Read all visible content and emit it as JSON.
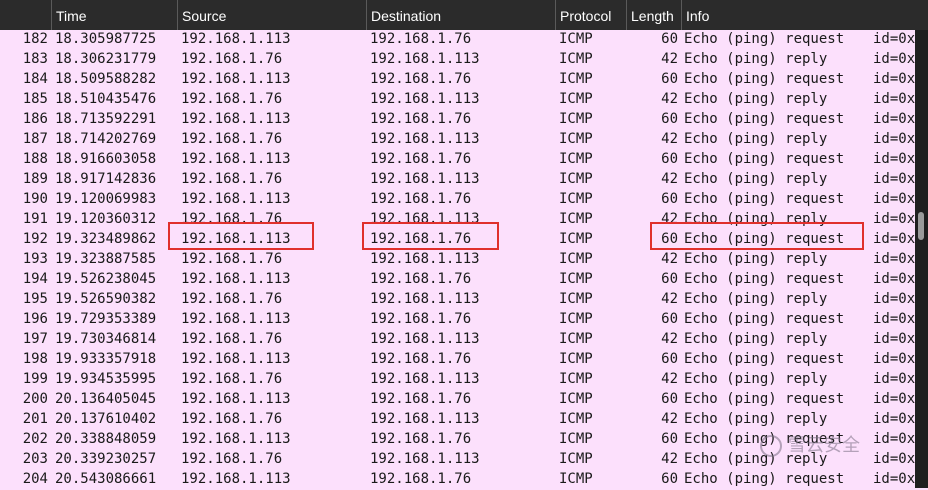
{
  "columns": {
    "no": "",
    "time": "Time",
    "source": "Source",
    "destination": "Destination",
    "protocol": "Protocol",
    "length": "Length",
    "info": "Info"
  },
  "packets": [
    {
      "no": "182",
      "time": "18.305987725",
      "src": "192.168.1.113",
      "dst": "192.168.1.76",
      "proto": "ICMP",
      "len": "60",
      "info": "Echo (ping) request",
      "extra": "id=0x"
    },
    {
      "no": "183",
      "time": "18.306231779",
      "src": "192.168.1.76",
      "dst": "192.168.1.113",
      "proto": "ICMP",
      "len": "42",
      "info": "Echo (ping) reply",
      "extra": "id=0x"
    },
    {
      "no": "184",
      "time": "18.509588282",
      "src": "192.168.1.113",
      "dst": "192.168.1.76",
      "proto": "ICMP",
      "len": "60",
      "info": "Echo (ping) request",
      "extra": "id=0x"
    },
    {
      "no": "185",
      "time": "18.510435476",
      "src": "192.168.1.76",
      "dst": "192.168.1.113",
      "proto": "ICMP",
      "len": "42",
      "info": "Echo (ping) reply",
      "extra": "id=0x"
    },
    {
      "no": "186",
      "time": "18.713592291",
      "src": "192.168.1.113",
      "dst": "192.168.1.76",
      "proto": "ICMP",
      "len": "60",
      "info": "Echo (ping) request",
      "extra": "id=0x"
    },
    {
      "no": "187",
      "time": "18.714202769",
      "src": "192.168.1.76",
      "dst": "192.168.1.113",
      "proto": "ICMP",
      "len": "42",
      "info": "Echo (ping) reply",
      "extra": "id=0x"
    },
    {
      "no": "188",
      "time": "18.916603058",
      "src": "192.168.1.113",
      "dst": "192.168.1.76",
      "proto": "ICMP",
      "len": "60",
      "info": "Echo (ping) request",
      "extra": "id=0x"
    },
    {
      "no": "189",
      "time": "18.917142836",
      "src": "192.168.1.76",
      "dst": "192.168.1.113",
      "proto": "ICMP",
      "len": "42",
      "info": "Echo (ping) reply",
      "extra": "id=0x"
    },
    {
      "no": "190",
      "time": "19.120069983",
      "src": "192.168.1.113",
      "dst": "192.168.1.76",
      "proto": "ICMP",
      "len": "60",
      "info": "Echo (ping) request",
      "extra": "id=0x"
    },
    {
      "no": "191",
      "time": "19.120360312",
      "src": "192.168.1.76",
      "dst": "192.168.1.113",
      "proto": "ICMP",
      "len": "42",
      "info": "Echo (ping) reply",
      "extra": "id=0x"
    },
    {
      "no": "192",
      "time": "19.323489862",
      "src": "192.168.1.113",
      "dst": "192.168.1.76",
      "proto": "ICMP",
      "len": "60",
      "info": "Echo (ping) request",
      "extra": "id=0x"
    },
    {
      "no": "193",
      "time": "19.323887585",
      "src": "192.168.1.76",
      "dst": "192.168.1.113",
      "proto": "ICMP",
      "len": "42",
      "info": "Echo (ping) reply",
      "extra": "id=0x"
    },
    {
      "no": "194",
      "time": "19.526238045",
      "src": "192.168.1.113",
      "dst": "192.168.1.76",
      "proto": "ICMP",
      "len": "60",
      "info": "Echo (ping) request",
      "extra": "id=0x"
    },
    {
      "no": "195",
      "time": "19.526590382",
      "src": "192.168.1.76",
      "dst": "192.168.1.113",
      "proto": "ICMP",
      "len": "42",
      "info": "Echo (ping) reply",
      "extra": "id=0x"
    },
    {
      "no": "196",
      "time": "19.729353389",
      "src": "192.168.1.113",
      "dst": "192.168.1.76",
      "proto": "ICMP",
      "len": "60",
      "info": "Echo (ping) request",
      "extra": "id=0x"
    },
    {
      "no": "197",
      "time": "19.730346814",
      "src": "192.168.1.76",
      "dst": "192.168.1.113",
      "proto": "ICMP",
      "len": "42",
      "info": "Echo (ping) reply",
      "extra": "id=0x"
    },
    {
      "no": "198",
      "time": "19.933357918",
      "src": "192.168.1.113",
      "dst": "192.168.1.76",
      "proto": "ICMP",
      "len": "60",
      "info": "Echo (ping) request",
      "extra": "id=0x"
    },
    {
      "no": "199",
      "time": "19.934535995",
      "src": "192.168.1.76",
      "dst": "192.168.1.113",
      "proto": "ICMP",
      "len": "42",
      "info": "Echo (ping) reply",
      "extra": "id=0x"
    },
    {
      "no": "200",
      "time": "20.136405045",
      "src": "192.168.1.113",
      "dst": "192.168.1.76",
      "proto": "ICMP",
      "len": "60",
      "info": "Echo (ping) request",
      "extra": "id=0x"
    },
    {
      "no": "201",
      "time": "20.137610402",
      "src": "192.168.1.76",
      "dst": "192.168.1.113",
      "proto": "ICMP",
      "len": "42",
      "info": "Echo (ping) reply",
      "extra": "id=0x"
    },
    {
      "no": "202",
      "time": "20.338848059",
      "src": "192.168.1.113",
      "dst": "192.168.1.76",
      "proto": "ICMP",
      "len": "60",
      "info": "Echo (ping) request",
      "extra": "id=0x"
    },
    {
      "no": "203",
      "time": "20.339230257",
      "src": "192.168.1.76",
      "dst": "192.168.1.113",
      "proto": "ICMP",
      "len": "42",
      "info": "Echo (ping) reply",
      "extra": "id=0x"
    },
    {
      "no": "204",
      "time": "20.543086661",
      "src": "192.168.1.113",
      "dst": "192.168.1.76",
      "proto": "ICMP",
      "len": "60",
      "info": "Echo (ping) request",
      "extra": "id=0x"
    }
  ],
  "watermark": "雪云安全",
  "colors": {
    "row_background": "#fce0fc",
    "header_background": "#2b2b2b",
    "highlight_box": "#e0302c"
  }
}
